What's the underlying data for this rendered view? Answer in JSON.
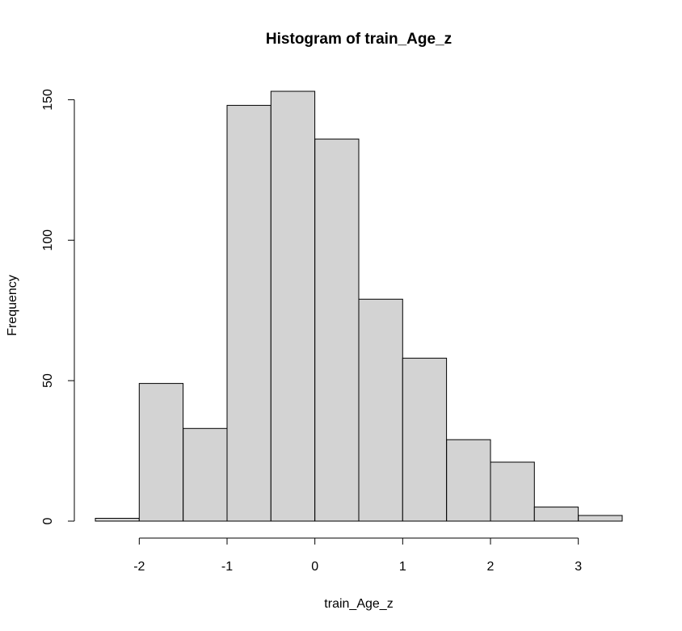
{
  "chart_data": {
    "type": "bar",
    "title": "Histogram of train_Age_z",
    "xlabel": "train_Age_z",
    "ylabel": "Frequency",
    "bin_width": 0.5,
    "bins": [
      {
        "start": -2.5,
        "end": -2.0,
        "count": 1
      },
      {
        "start": -2.0,
        "end": -1.5,
        "count": 49
      },
      {
        "start": -1.5,
        "end": -1.0,
        "count": 33
      },
      {
        "start": -1.0,
        "end": -0.5,
        "count": 148
      },
      {
        "start": -0.5,
        "end": 0.0,
        "count": 153
      },
      {
        "start": 0.0,
        "end": 0.5,
        "count": 136
      },
      {
        "start": 0.5,
        "end": 1.0,
        "count": 79
      },
      {
        "start": 1.0,
        "end": 1.5,
        "count": 58
      },
      {
        "start": 1.5,
        "end": 2.0,
        "count": 29
      },
      {
        "start": 2.0,
        "end": 2.5,
        "count": 21
      },
      {
        "start": 2.5,
        "end": 3.0,
        "count": 5
      },
      {
        "start": 3.0,
        "end": 3.5,
        "count": 2
      }
    ],
    "xlim": [
      -2.5,
      3.5
    ],
    "ylim": [
      0,
      153
    ],
    "x_ticks": [
      -2,
      -1,
      0,
      1,
      2,
      3
    ],
    "x_tick_labels": [
      "-2",
      "-1",
      "0",
      "1",
      "2",
      "3"
    ],
    "y_ticks": [
      0,
      50,
      100,
      150
    ],
    "y_tick_labels": [
      "0",
      "50",
      "100",
      "150"
    ],
    "grid": false,
    "colors": {
      "bar_fill": "#d3d3d3",
      "bar_stroke": "#000000"
    }
  }
}
